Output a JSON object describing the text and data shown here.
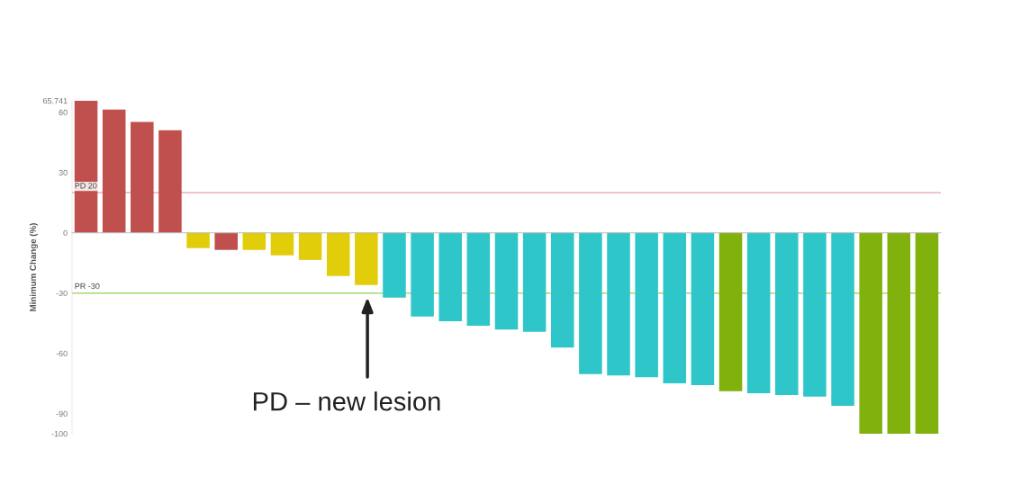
{
  "chart_data": {
    "type": "bar",
    "ylabel": "Minimum Change (%)",
    "categories": [
      null,
      null,
      null,
      null,
      null,
      null,
      null,
      null,
      null,
      null,
      null,
      null,
      null,
      null,
      null,
      null,
      null,
      null,
      null,
      null,
      null,
      null,
      null,
      null,
      null,
      null,
      null,
      null,
      null,
      null,
      null
    ],
    "values": [
      65.741,
      61.4,
      55.2,
      51.1,
      -7.6,
      -8.5,
      -8.5,
      -11.2,
      -13.5,
      -21.5,
      -26,
      -32.3,
      -41.7,
      -44,
      -46.2,
      -48.1,
      -49.3,
      -57.1,
      -70.3,
      -71,
      -71.9,
      -74.9,
      -75.8,
      -78.8,
      -79.8,
      -80.7,
      -81.5,
      -86.1,
      -100,
      -100,
      -100
    ],
    "colors": [
      "#c0504d",
      "#c0504d",
      "#c0504d",
      "#c0504d",
      "#e2cd0a",
      "#c0504d",
      "#e2cd0a",
      "#e2cd0a",
      "#e2cd0a",
      "#e2cd0a",
      "#e2cd0a",
      "#2ec6c8",
      "#2ec6c8",
      "#2ec6c8",
      "#2ec6c8",
      "#2ec6c8",
      "#2ec6c8",
      "#2ec6c8",
      "#2ec6c8",
      "#2ec6c8",
      "#2ec6c8",
      "#2ec6c8",
      "#2ec6c8",
      "#80b10c",
      "#2ec6c8",
      "#2ec6c8",
      "#2ec6c8",
      "#2ec6c8",
      "#80b10c",
      "#80b10c",
      "#80b10c"
    ],
    "ylim": [
      -100,
      65.741
    ],
    "yticks": [
      65.741,
      60,
      30,
      0,
      -30,
      -60,
      -90,
      -100
    ],
    "ref_lines": [
      {
        "axis": "y",
        "value": 20,
        "label": "PD 20",
        "color": "#e8a0a8"
      },
      {
        "axis": "y",
        "value": -30,
        "label": "PR -30",
        "color": "#a8d86a"
      }
    ],
    "annotations": [
      "PD – new lesion"
    ],
    "grid": false,
    "legend": false
  }
}
